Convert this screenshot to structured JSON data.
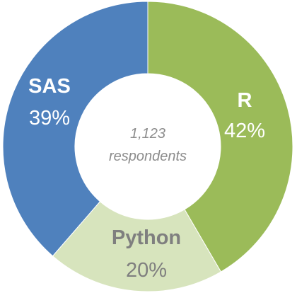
{
  "chart_data": {
    "type": "pie",
    "style": "donut",
    "slices": [
      {
        "label": "R",
        "value": 42,
        "display": "42%",
        "color": "#9bbb59",
        "text_color": "#ffffff"
      },
      {
        "label": "Python",
        "value": 20,
        "display": "20%",
        "color": "#d7e4bd",
        "text_color": "#7f7f7f"
      },
      {
        "label": "SAS",
        "value": 39,
        "display": "39%",
        "color": "#4f81bd",
        "text_color": "#ffffff"
      }
    ],
    "center_text": [
      "1,123",
      "respondents"
    ]
  }
}
